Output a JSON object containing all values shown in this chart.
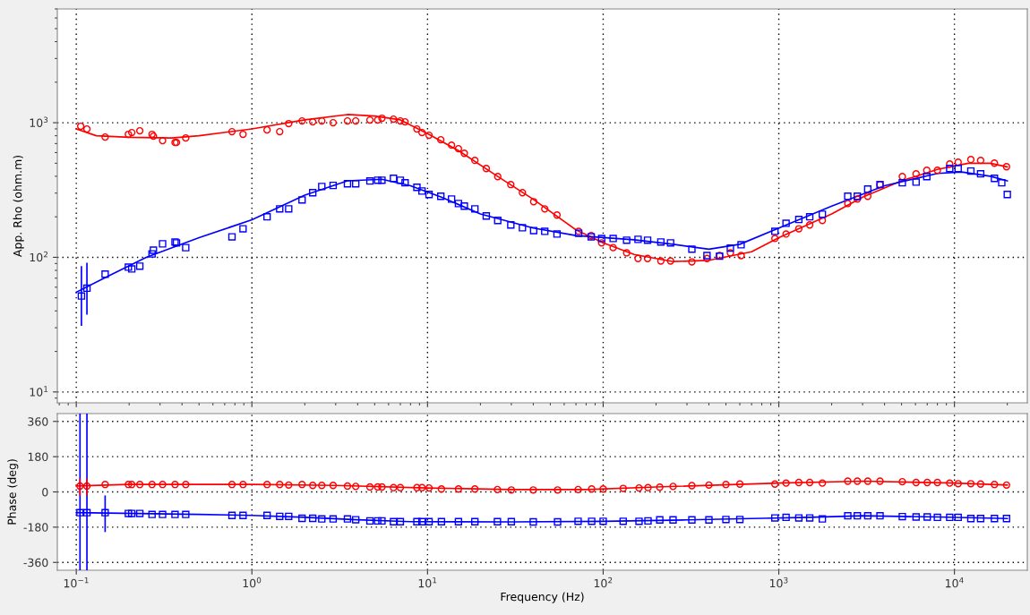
{
  "chart_data": [
    {
      "type": "scatter",
      "ylabel": "App. Rho (ohm.m)",
      "log": "xy",
      "grid": true,
      "tick_labels": "y",
      "xlim": [
        0.078,
        26000
      ],
      "ylim": [
        8.3,
        7000
      ],
      "xticks": [
        {
          "value": 0.1,
          "label": null
        },
        {
          "value": 1,
          "label": null
        },
        {
          "value": 10,
          "label": null
        },
        {
          "value": 100,
          "label": null
        },
        {
          "value": 1000,
          "label": null
        },
        {
          "value": 10000,
          "label": null
        }
      ],
      "yticks": [
        {
          "value": 10,
          "label": "10$^{1}$"
        },
        {
          "value": 100,
          "label": "10$^{2}$"
        },
        {
          "value": 1000,
          "label": "10$^{3}$"
        }
      ],
      "series": [
        {
          "color": "#ff0000",
          "marker": "circle",
          "x": [
            0.106,
            0.115,
            0.146,
            0.198,
            0.207,
            0.23,
            0.27,
            0.275,
            0.31,
            0.365,
            0.372,
            0.42,
            0.77,
            0.89,
            1.22,
            1.44,
            1.62,
            1.93,
            2.22,
            2.5,
            2.9,
            3.5,
            3.9,
            4.7,
            5.2,
            5.5,
            6.4,
            7.0,
            7.45,
            8.7,
            9.3,
            10.2,
            11.9,
            13.7,
            15,
            16.2,
            18.6,
            21.6,
            25.1,
            29.8,
            34.7,
            40.2,
            46.5,
            54.6,
            72.5,
            85.5,
            98,
            114,
            136,
            158,
            179,
            213,
            242,
            320,
            390,
            460,
            530,
            610,
            950,
            1100,
            1300,
            1500,
            1770,
            2470,
            2800,
            3210,
            3770,
            5050,
            6050,
            6960,
            8000,
            9400,
            10500,
            12400,
            14100,
            16900,
            19800
          ],
          "values": [
            941,
            898,
            782,
            820,
            845,
            871,
            820,
            794,
            736,
            713,
            713,
            770,
            858,
            820,
            884,
            858,
            985,
            1031,
            1015,
            1031,
            1000,
            1031,
            1031,
            1047,
            1047,
            1080,
            1063,
            1031,
            1015,
            898,
            845,
            807,
            747,
            681,
            641,
            593,
            525,
            457,
            398,
            347,
            302,
            259,
            229,
            206,
            156,
            145,
            128,
            118,
            108,
            98,
            98,
            94,
            94,
            92.5,
            98,
            103,
            108,
            103,
            138,
            149,
            163,
            174,
            188,
            251,
            271,
            284,
            347,
            398,
            417,
            443,
            443,
            493,
            509,
            533,
            525,
            501,
            471
          ]
        },
        {
          "type": "line",
          "color": "#ff0000",
          "marker": "none",
          "x": [
            0.1,
            0.13,
            0.2,
            0.35,
            0.5,
            1,
            2,
            3.5,
            5,
            7,
            10,
            15,
            25,
            40,
            70,
            100,
            150,
            250,
            400,
            700,
            1000,
            2000,
            3000,
            5000,
            8000,
            12000,
            16000,
            20000
          ],
          "values": [
            900,
            800,
            780,
            770,
            800,
            900,
            1050,
            1150,
            1120,
            1050,
            830,
            620,
            400,
            270,
            160,
            128,
            105,
            93,
            95,
            110,
            140,
            210,
            280,
            370,
            450,
            500,
            500,
            470
          ]
        },
        {
          "color": "#0000ff",
          "marker": "square",
          "x": [
            0.107,
            0.115,
            0.146,
            0.198,
            0.207,
            0.23,
            0.27,
            0.275,
            0.31,
            0.365,
            0.372,
            0.42,
            0.77,
            0.89,
            1.22,
            1.44,
            1.62,
            1.93,
            2.22,
            2.5,
            2.9,
            3.5,
            3.9,
            4.7,
            5.2,
            5.5,
            6.4,
            7.0,
            7.45,
            8.7,
            9.3,
            10.2,
            11.9,
            13.7,
            15,
            16.2,
            18.6,
            21.6,
            25.1,
            29.8,
            34.7,
            40.2,
            46.5,
            54.6,
            72.5,
            85.5,
            98,
            114,
            136,
            158,
            179,
            213,
            242,
            320,
            390,
            460,
            530,
            610,
            950,
            1100,
            1300,
            1500,
            1770,
            2470,
            2800,
            3210,
            3770,
            5050,
            6050,
            6960,
            9400,
            10500,
            12400,
            14100,
            16900,
            18600,
            20000
          ],
          "values": [
            51.6,
            59,
            75,
            84.5,
            82,
            86,
            106,
            113,
            126,
            130,
            128,
            118,
            142,
            163,
            200,
            229,
            229,
            267,
            302,
            336,
            342,
            352,
            352,
            369,
            374,
            374,
            386,
            374,
            358,
            331,
            311,
            293,
            284,
            271,
            251,
            240,
            229,
            203,
            188,
            174,
            166,
            158,
            156,
            149,
            151,
            142,
            138,
            138,
            134,
            136,
            134,
            130,
            128,
            115,
            103,
            102,
            117,
            124,
            156,
            179,
            191,
            200,
            209,
            284,
            284,
            321,
            347,
            358,
            362,
            398,
            457,
            457,
            437,
            417,
            386,
            358,
            293
          ],
          "errors": [
            [
              31,
              86
            ],
            [
              37.5,
              91
            ],
            null,
            null,
            null,
            null,
            null,
            null,
            null,
            null,
            null,
            null,
            null,
            null,
            null,
            null,
            null,
            null,
            null,
            null,
            null,
            null,
            null,
            null,
            null,
            null,
            null,
            null,
            null,
            null,
            null,
            null,
            null,
            null,
            null,
            null,
            null,
            null,
            null,
            null,
            null,
            null,
            null,
            null,
            null,
            null,
            null,
            null,
            null,
            null,
            null,
            null,
            null,
            null,
            null,
            null,
            null,
            null,
            null,
            null,
            null,
            null,
            null,
            null,
            null,
            null,
            null,
            null,
            null,
            null,
            null,
            null,
            null,
            null,
            null,
            null,
            null
          ]
        },
        {
          "type": "line",
          "color": "#0000ff",
          "marker": "none",
          "x": [
            0.1,
            0.15,
            0.25,
            0.5,
            1,
            2,
            3.5,
            5.5,
            8,
            12,
            20,
            40,
            70,
            150,
            250,
            400,
            600,
            1000,
            2000,
            4000,
            8000,
            11000,
            16000,
            20000
          ],
          "values": [
            55,
            72,
            100,
            140,
            190,
            290,
            370,
            380,
            340,
            280,
            210,
            165,
            145,
            135,
            125,
            115,
            125,
            165,
            240,
            340,
            420,
            430,
            400,
            370
          ]
        }
      ]
    },
    {
      "type": "scatter",
      "ylabel": "Phase (deg)",
      "xlabel": "Frequency (Hz)",
      "log": "x",
      "grid": true,
      "xlim": [
        0.078,
        26000
      ],
      "ylim": [
        -400,
        400
      ],
      "xticks": [
        {
          "value": 0.1,
          "label": "10$^{−1}$"
        },
        {
          "value": 1,
          "label": "10$^{0}$"
        },
        {
          "value": 10,
          "label": "10$^{1}$"
        },
        {
          "value": 100,
          "label": "10$^{2}$"
        },
        {
          "value": 1000,
          "label": "10$^{3}$"
        },
        {
          "value": 10000,
          "label": "10$^{4}$"
        }
      ],
      "yticks": [
        360,
        180,
        0,
        -180,
        -360
      ],
      "series": [
        {
          "color": "#ff0000",
          "marker": "circle",
          "x": [
            0.105,
            0.115,
            0.146,
            0.198,
            0.207,
            0.23,
            0.27,
            0.31,
            0.365,
            0.42,
            0.77,
            0.89,
            1.22,
            1.44,
            1.62,
            1.93,
            2.22,
            2.5,
            2.9,
            3.5,
            3.9,
            4.7,
            5.2,
            5.5,
            6.4,
            7.0,
            8.7,
            9.3,
            10.2,
            12,
            15,
            18.6,
            25,
            30,
            40,
            55,
            72,
            86,
            100,
            130,
            160,
            180,
            210,
            250,
            320,
            400,
            500,
            600,
            950,
            1100,
            1300,
            1500,
            1770,
            2470,
            2800,
            3210,
            3770,
            5050,
            6050,
            7000,
            8000,
            9400,
            10500,
            12400,
            14100,
            16900,
            19800
          ],
          "values": [
            30,
            30,
            38,
            38,
            38,
            38,
            38,
            38,
            38,
            38,
            38,
            38,
            38,
            38,
            35,
            38,
            33,
            33,
            33,
            30,
            28,
            25,
            25,
            25,
            22,
            22,
            22,
            22,
            20,
            15,
            15,
            15,
            12,
            10,
            10,
            10,
            12,
            15,
            15,
            18,
            20,
            22,
            24,
            28,
            32,
            35,
            38,
            40,
            40,
            45,
            48,
            48,
            45,
            55,
            55,
            55,
            55,
            52,
            48,
            48,
            48,
            45,
            42,
            42,
            40,
            38,
            35
          ],
          "errors": [
            [
              -18,
              68
            ],
            [
              -18,
              68
            ],
            null,
            null,
            null,
            null,
            null,
            null,
            null,
            null,
            null,
            null,
            null,
            null,
            null,
            null,
            null,
            null,
            null,
            null,
            null,
            null,
            null,
            null,
            null,
            null,
            null,
            null,
            null,
            null,
            null,
            null,
            null,
            null,
            null,
            null,
            null,
            null,
            null,
            null,
            null,
            null,
            null,
            null,
            null,
            null,
            null,
            null,
            null,
            null,
            null,
            null,
            null,
            null,
            null,
            null,
            null,
            null,
            null,
            null,
            null,
            null,
            null,
            null,
            null,
            null,
            null
          ]
        },
        {
          "type": "line",
          "color": "#ff0000",
          "marker": "none",
          "x": [
            0.1,
            0.2,
            1,
            3,
            10,
            30,
            80,
            200,
            1000,
            3000,
            10000,
            20000
          ],
          "values": [
            30,
            38,
            38,
            33,
            20,
            12,
            12,
            25,
            45,
            55,
            45,
            35
          ]
        },
        {
          "color": "#0000ff",
          "marker": "square",
          "x": [
            0.105,
            0.115,
            0.146,
            0.198,
            0.207,
            0.23,
            0.27,
            0.31,
            0.365,
            0.42,
            0.77,
            0.89,
            1.22,
            1.44,
            1.62,
            1.93,
            2.22,
            2.5,
            2.9,
            3.5,
            3.9,
            4.7,
            5.2,
            5.5,
            6.4,
            7.0,
            8.7,
            9.3,
            10.2,
            12,
            15,
            18.6,
            25,
            30,
            40,
            55,
            72,
            86,
            100,
            130,
            160,
            180,
            210,
            250,
            320,
            400,
            500,
            600,
            950,
            1100,
            1300,
            1500,
            1770,
            2470,
            2800,
            3210,
            3770,
            5050,
            6050,
            7000,
            8000,
            9400,
            10500,
            12400,
            14100,
            16900,
            19800
          ],
          "values": [
            -106,
            -106,
            -106,
            -110,
            -110,
            -110,
            -115,
            -115,
            -115,
            -115,
            -120,
            -120,
            -120,
            -125,
            -125,
            -135,
            -135,
            -138,
            -138,
            -138,
            -142,
            -148,
            -148,
            -148,
            -152,
            -152,
            -152,
            -152,
            -152,
            -152,
            -152,
            -152,
            -152,
            -152,
            -153,
            -153,
            -150,
            -150,
            -150,
            -150,
            -150,
            -148,
            -143,
            -143,
            -143,
            -143,
            -141,
            -141,
            -133,
            -130,
            -133,
            -133,
            -138,
            -122,
            -122,
            -122,
            -122,
            -126,
            -128,
            -128,
            -130,
            -130,
            -130,
            -136,
            -136,
            -136,
            -136
          ],
          "errors": [
            [
              -400,
              400
            ],
            [
              -400,
              400
            ],
            [
              -205,
              -18
            ],
            null,
            null,
            null,
            null,
            null,
            null,
            null,
            null,
            null,
            null,
            null,
            null,
            null,
            null,
            null,
            null,
            null,
            null,
            null,
            null,
            null,
            null,
            null,
            null,
            null,
            null,
            null,
            null,
            null,
            null,
            null,
            null,
            null,
            null,
            null,
            null,
            null,
            null,
            null,
            null,
            null,
            null,
            null,
            null,
            null,
            null,
            null,
            null,
            null,
            null,
            null,
            null,
            null,
            null,
            null,
            null,
            null,
            null,
            null,
            null,
            null,
            null,
            null,
            null
          ]
        },
        {
          "type": "line",
          "color": "#0000ff",
          "marker": "none",
          "x": [
            0.1,
            0.15,
            0.5,
            1,
            2,
            4,
            8,
            30,
            100,
            300,
            800,
            1500,
            3000,
            8000,
            20000
          ],
          "values": [
            -106,
            -108,
            -115,
            -120,
            -130,
            -142,
            -152,
            -153,
            -150,
            -143,
            -135,
            -130,
            -122,
            -128,
            -136
          ]
        }
      ]
    }
  ]
}
